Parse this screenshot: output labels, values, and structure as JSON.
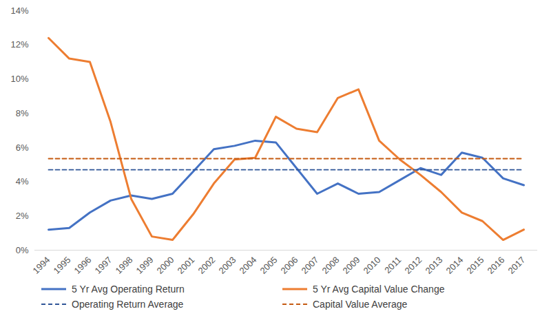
{
  "chart_data": {
    "type": "line",
    "categories": [
      "1994",
      "1995",
      "1996",
      "1997",
      "1998",
      "1999",
      "2000",
      "2001",
      "2002",
      "2003",
      "2004",
      "2005",
      "2006",
      "2007",
      "2008",
      "2009",
      "2010",
      "2011",
      "2012",
      "2013",
      "2014",
      "2015",
      "2016",
      "2017"
    ],
    "ylim": [
      0,
      14
    ],
    "yticks": [
      {
        "value": 0,
        "label": "0%"
      },
      {
        "value": 2,
        "label": "2%"
      },
      {
        "value": 4,
        "label": "4%"
      },
      {
        "value": 6,
        "label": "6%"
      },
      {
        "value": 8,
        "label": "8%"
      },
      {
        "value": 10,
        "label": "10%"
      },
      {
        "value": 12,
        "label": "12%"
      },
      {
        "value": 14,
        "label": "14%"
      }
    ],
    "grid": false,
    "legend": "bottom",
    "series": [
      {
        "name": "5 Yr Avg Operating Return",
        "color": "#4472C4",
        "line_style": "solid",
        "values": [
          1.2,
          1.3,
          2.2,
          2.9,
          3.2,
          3.0,
          3.3,
          4.6,
          5.9,
          6.1,
          6.4,
          6.3,
          4.8,
          3.3,
          3.9,
          3.3,
          3.4,
          4.1,
          4.8,
          4.4,
          5.7,
          5.4,
          4.2,
          3.8
        ]
      },
      {
        "name": "5 Yr Avg Capital Value Change",
        "color": "#ED7D31",
        "line_style": "solid",
        "values": [
          12.4,
          11.2,
          11.0,
          7.5,
          3.0,
          0.8,
          0.6,
          2.1,
          3.9,
          5.3,
          5.4,
          7.8,
          7.1,
          6.9,
          8.9,
          9.4,
          6.4,
          5.3,
          4.4,
          3.4,
          2.2,
          1.7,
          0.6,
          1.2
        ]
      },
      {
        "name": "Operating Return Average",
        "color": "#2F5597",
        "line_style": "dashed",
        "values": [
          4.7,
          4.7,
          4.7,
          4.7,
          4.7,
          4.7,
          4.7,
          4.7,
          4.7,
          4.7,
          4.7,
          4.7,
          4.7,
          4.7,
          4.7,
          4.7,
          4.7,
          4.7,
          4.7,
          4.7,
          4.7,
          4.7,
          4.7,
          4.7
        ]
      },
      {
        "name": "Capital Value Average",
        "color": "#C55A11",
        "line_style": "dashed",
        "values": [
          5.35,
          5.35,
          5.35,
          5.35,
          5.35,
          5.35,
          5.35,
          5.35,
          5.35,
          5.35,
          5.35,
          5.35,
          5.35,
          5.35,
          5.35,
          5.35,
          5.35,
          5.35,
          5.35,
          5.35,
          5.35,
          5.35,
          5.35,
          5.35
        ]
      }
    ]
  }
}
